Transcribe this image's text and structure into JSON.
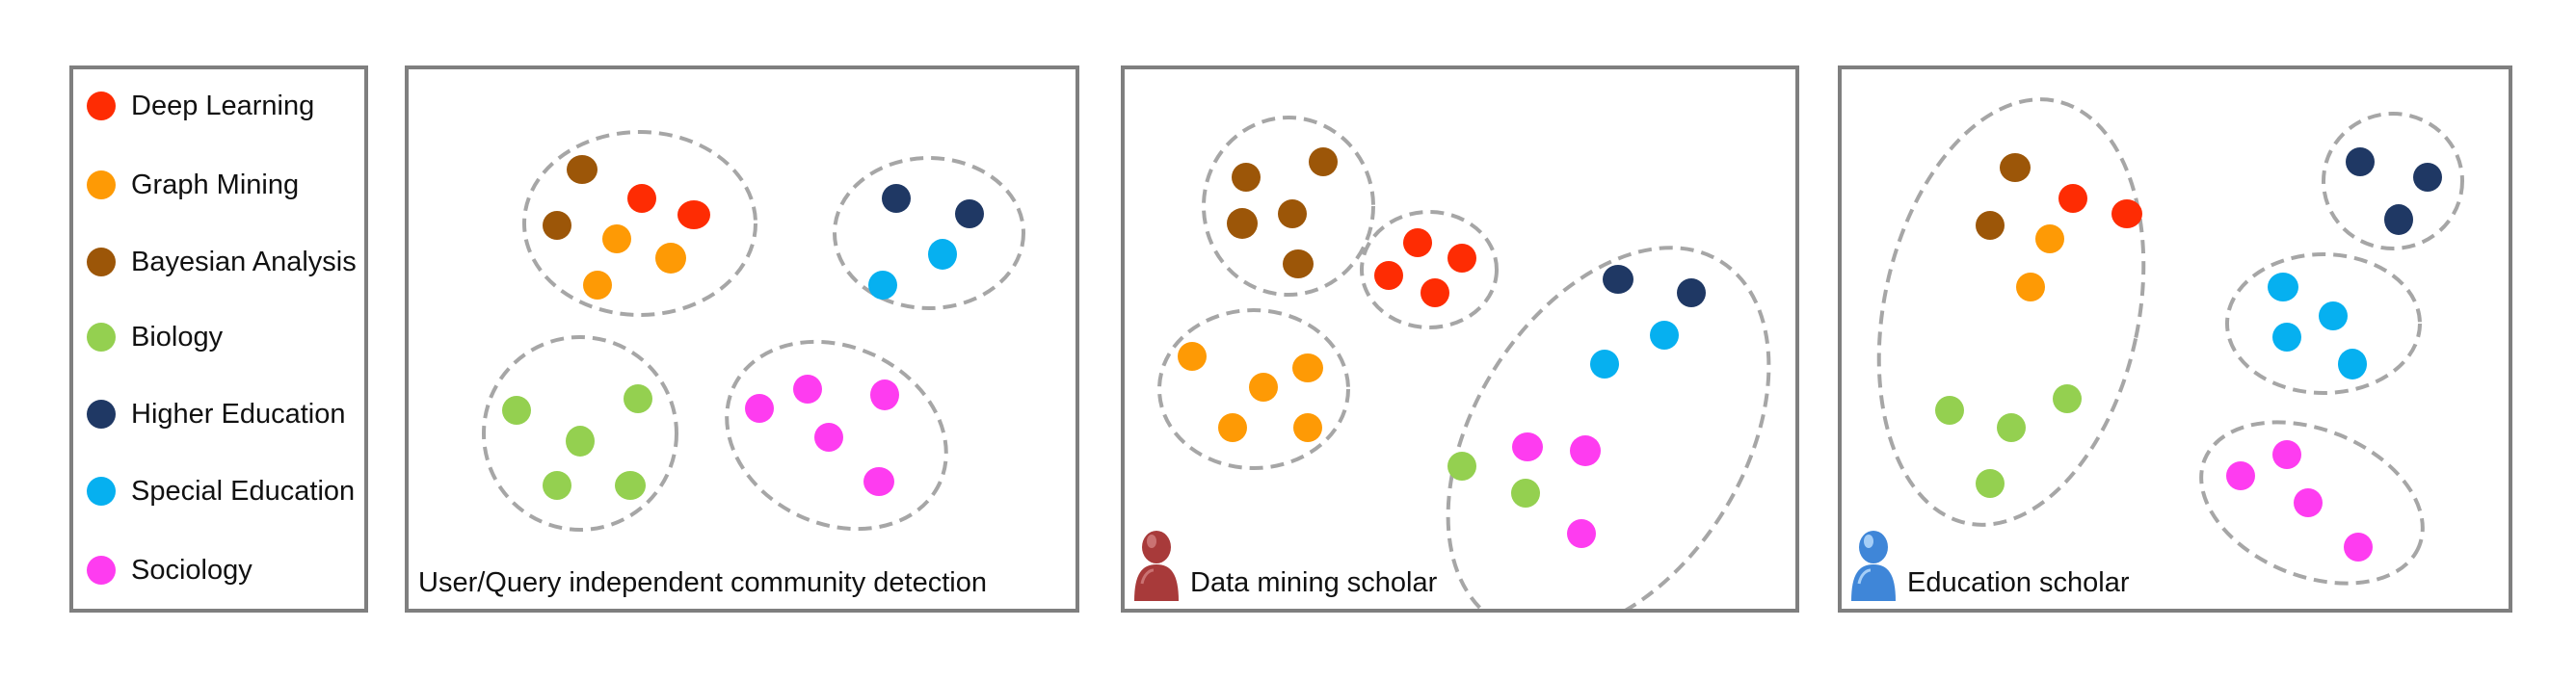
{
  "legend": {
    "items": [
      {
        "key": "deep_learning",
        "label": "Deep Learning",
        "color": "#fe2c03"
      },
      {
        "key": "graph_mining",
        "label": "Graph Mining",
        "color": "#fe9a05"
      },
      {
        "key": "bayesian",
        "label": "Bayesian Analysis",
        "color": "#9c5608"
      },
      {
        "key": "biology",
        "label": "Biology",
        "color": "#94d050"
      },
      {
        "key": "higher_ed",
        "label": "Higher Education",
        "color": "#1f3864"
      },
      {
        "key": "special_ed",
        "label": "Special Education",
        "color": "#06b0f0"
      },
      {
        "key": "sociology",
        "label": "Sociology",
        "color": "#fe3cf0"
      }
    ]
  },
  "panels": [
    {
      "caption": "User/Query independent community detection",
      "icon": "none"
    },
    {
      "caption": "Data mining scholar",
      "icon": "red-person-icon",
      "icon_color": "#a83a3a"
    },
    {
      "caption": "Education scholar",
      "icon": "blue-person-icon",
      "icon_color": "#3f86d8"
    }
  ]
}
